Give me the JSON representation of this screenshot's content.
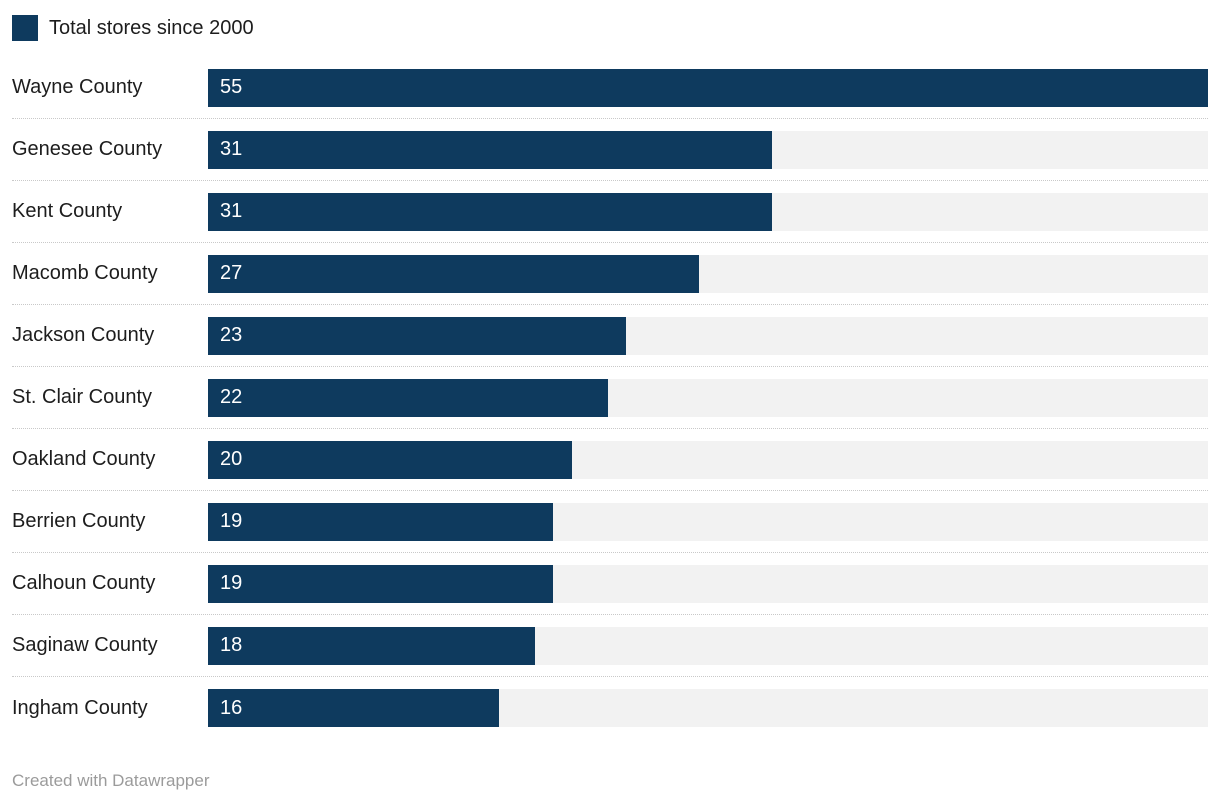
{
  "legend": {
    "label": "Total stores since 2000"
  },
  "footer": {
    "text": "Created with Datawrapper"
  },
  "colors": {
    "bar": "#0e3a5e",
    "track": "#f2f2f2",
    "separator": "#c9c9c9",
    "value_text": "#ffffff",
    "label_text": "#1d1d1d",
    "footer_text": "#9b9b9b"
  },
  "chart_data": {
    "type": "bar",
    "orientation": "horizontal",
    "title": "Total stores since 2000",
    "categories": [
      "Wayne County",
      "Genesee County",
      "Kent County",
      "Macomb County",
      "Jackson County",
      "St. Clair County",
      "Oakland County",
      "Berrien County",
      "Calhoun County",
      "Saginaw County",
      "Ingham County"
    ],
    "values": [
      55,
      31,
      31,
      27,
      23,
      22,
      20,
      19,
      19,
      18,
      16
    ],
    "xlim": [
      0,
      55
    ],
    "legend_position": "top",
    "grid": false,
    "value_labels": "inside-start"
  }
}
